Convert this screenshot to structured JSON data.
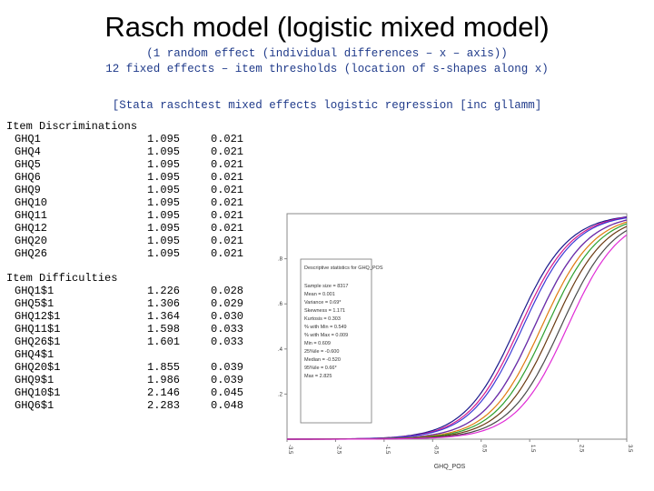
{
  "title": "Rasch model (logistic mixed model)",
  "subtitle1": "(1 random effect (individual differences – x – axis))",
  "subtitle2": "12 fixed effects – item thresholds (location of s-shapes along x)",
  "subtitle3": "[Stata raschtest mixed effects logistic regression [inc gllamm]",
  "discriminations": {
    "heading": "Item Discriminations",
    "rows": [
      {
        "label": "GHQ1",
        "est": "1.095",
        "se": "0.021"
      },
      {
        "label": "GHQ4",
        "est": "1.095",
        "se": "0.021"
      },
      {
        "label": "GHQ5",
        "est": "1.095",
        "se": "0.021"
      },
      {
        "label": "GHQ6",
        "est": "1.095",
        "se": "0.021"
      },
      {
        "label": "GHQ9",
        "est": "1.095",
        "se": "0.021"
      },
      {
        "label": "GHQ10",
        "est": "1.095",
        "se": "0.021"
      },
      {
        "label": "GHQ11",
        "est": "1.095",
        "se": "0.021"
      },
      {
        "label": "GHQ12",
        "est": "1.095",
        "se": "0.021"
      },
      {
        "label": "GHQ20",
        "est": "1.095",
        "se": "0.021"
      },
      {
        "label": "GHQ26",
        "est": "1.095",
        "se": "0.021"
      }
    ]
  },
  "difficulties": {
    "heading": "Item Difficulties",
    "rows": [
      {
        "label": "GHQ1$1",
        "est": "1.226",
        "se": "0.028"
      },
      {
        "label": "GHQ5$1",
        "est": "1.306",
        "se": "0.029"
      },
      {
        "label": "GHQ12$1",
        "est": "1.364",
        "se": "0.030"
      },
      {
        "label": "GHQ11$1",
        "est": "1.598",
        "se": "0.033"
      },
      {
        "label": "GHQ26$1",
        "est": "1.601",
        "se": "0.033"
      },
      {
        "label": "GHQ4$1",
        "est": "",
        "se": ""
      },
      {
        "label": "GHQ20$1",
        "est": "1.855",
        "se": "0.039"
      },
      {
        "label": "GHQ9$1",
        "est": "1.986",
        "se": "0.039"
      },
      {
        "label": "GHQ10$1",
        "est": "2.146",
        "se": "0.045"
      },
      {
        "label": "GHQ6$1",
        "est": "2.283",
        "se": "0.048"
      }
    ]
  },
  "chart_data": {
    "type": "line",
    "xlabel": "GHQ_POS",
    "ylabel": "",
    "xlim": [
      -3.5,
      3.5
    ],
    "ylim": [
      0,
      1
    ],
    "x_ticks": [
      "-3.5",
      "-2.5",
      "-1.5",
      "-0.5",
      "0.5",
      "1.5",
      "2.5",
      "3.5"
    ],
    "y_ticks": [
      ".2",
      ".4",
      ".6",
      ".8"
    ],
    "discrimination": 1.095,
    "series": [
      {
        "threshold": 1.226,
        "color": "#1a1a8c"
      },
      {
        "threshold": 1.306,
        "color": "#d6198c"
      },
      {
        "threshold": 1.364,
        "color": "#3a3ad6"
      },
      {
        "threshold": 1.598,
        "color": "#19b8b8"
      },
      {
        "threshold": 1.601,
        "color": "#7a1fa8"
      },
      {
        "threshold": 1.75,
        "color": "#e07b10"
      },
      {
        "threshold": 1.855,
        "color": "#2ea02e"
      },
      {
        "threshold": 1.986,
        "color": "#6b3a12"
      },
      {
        "threshold": 2.146,
        "color": "#4a4a4a"
      },
      {
        "threshold": 2.283,
        "color": "#e02bd6"
      }
    ],
    "stats_box": {
      "title": "Descriptive statistics for GHQ_POS",
      "lines": [
        "Sample size = 8317",
        "Mean = 0.001",
        "Variance = 0.69*",
        "Skewness = 1.171",
        "Kurtosis = 0.303",
        "% with Min = 0.549",
        "% with Max = 0.009",
        "Min = 0.609",
        "25%ile = -0.600",
        "Median = -0.520",
        "95%ile = 0.66*",
        "Max = 2.825"
      ]
    }
  }
}
